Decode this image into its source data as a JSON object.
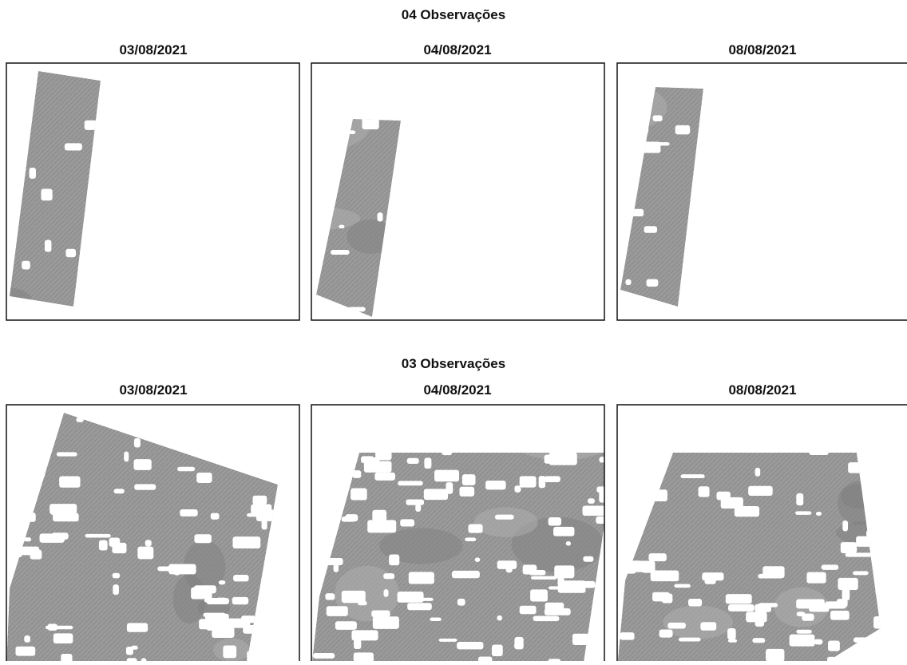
{
  "rows": [
    {
      "title": "04 Observações",
      "panels": [
        {
          "title": "03/08/2021"
        },
        {
          "title": "04/08/2021"
        },
        {
          "title": "08/08/2021"
        }
      ]
    },
    {
      "title": "03 Observações",
      "panels": [
        {
          "title": "03/08/2021"
        },
        {
          "title": "04/08/2021"
        },
        {
          "title": "08/08/2021"
        }
      ]
    }
  ]
}
